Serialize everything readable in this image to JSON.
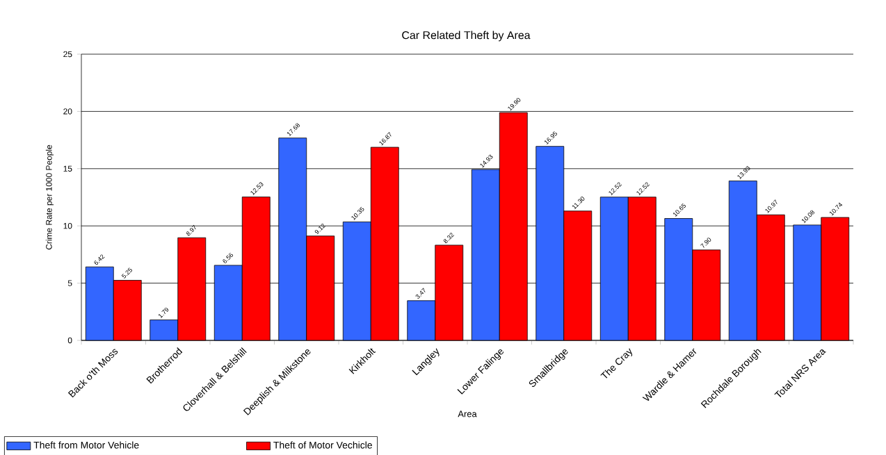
{
  "chart_data": {
    "type": "bar",
    "title": "Car Related Theft by Area",
    "xlabel": "Area",
    "ylabel": "Crime Rate per 1000 People",
    "categories": [
      "Back o'th Moss",
      "Brotherrod",
      "Cloverhall & Belshill",
      "Deeplish & Milkstone",
      "Kirkholt",
      "Langley",
      "Lower Falinge",
      "Smallbridge",
      "The Cray",
      "Wardle & Hamer",
      "Rochdale Borough",
      "Total NRS Area"
    ],
    "series": [
      {
        "name": "Theft from Motor Vehicle",
        "color": "#3366ff",
        "values": [
          6.42,
          1.79,
          6.56,
          17.68,
          10.35,
          3.47,
          14.93,
          16.95,
          12.52,
          10.65,
          13.93,
          10.08
        ],
        "value_labels": [
          "6.42",
          "1.79",
          "6.56",
          "17.68",
          "10.35",
          "3.47",
          "14.93",
          "16.95",
          "12.52",
          "10.65",
          "13.93",
          "10.08"
        ]
      },
      {
        "name": "Theft of Motor Vechicle",
        "color": "#ff0000",
        "values": [
          5.25,
          8.97,
          12.53,
          9.12,
          16.87,
          8.32,
          19.9,
          11.3,
          12.52,
          7.9,
          10.97,
          10.74
        ],
        "value_labels": [
          "5.25",
          "8.97",
          "12.53",
          "9.12",
          "16.87",
          "8.32",
          "19.90",
          "11.30",
          "12.52",
          "7.90",
          "10.97",
          "10.74"
        ]
      }
    ],
    "ylim": [
      0,
      25
    ],
    "yticks": [
      0,
      5,
      10,
      15,
      20,
      25
    ],
    "grid": "y",
    "legend": "bottom left"
  }
}
